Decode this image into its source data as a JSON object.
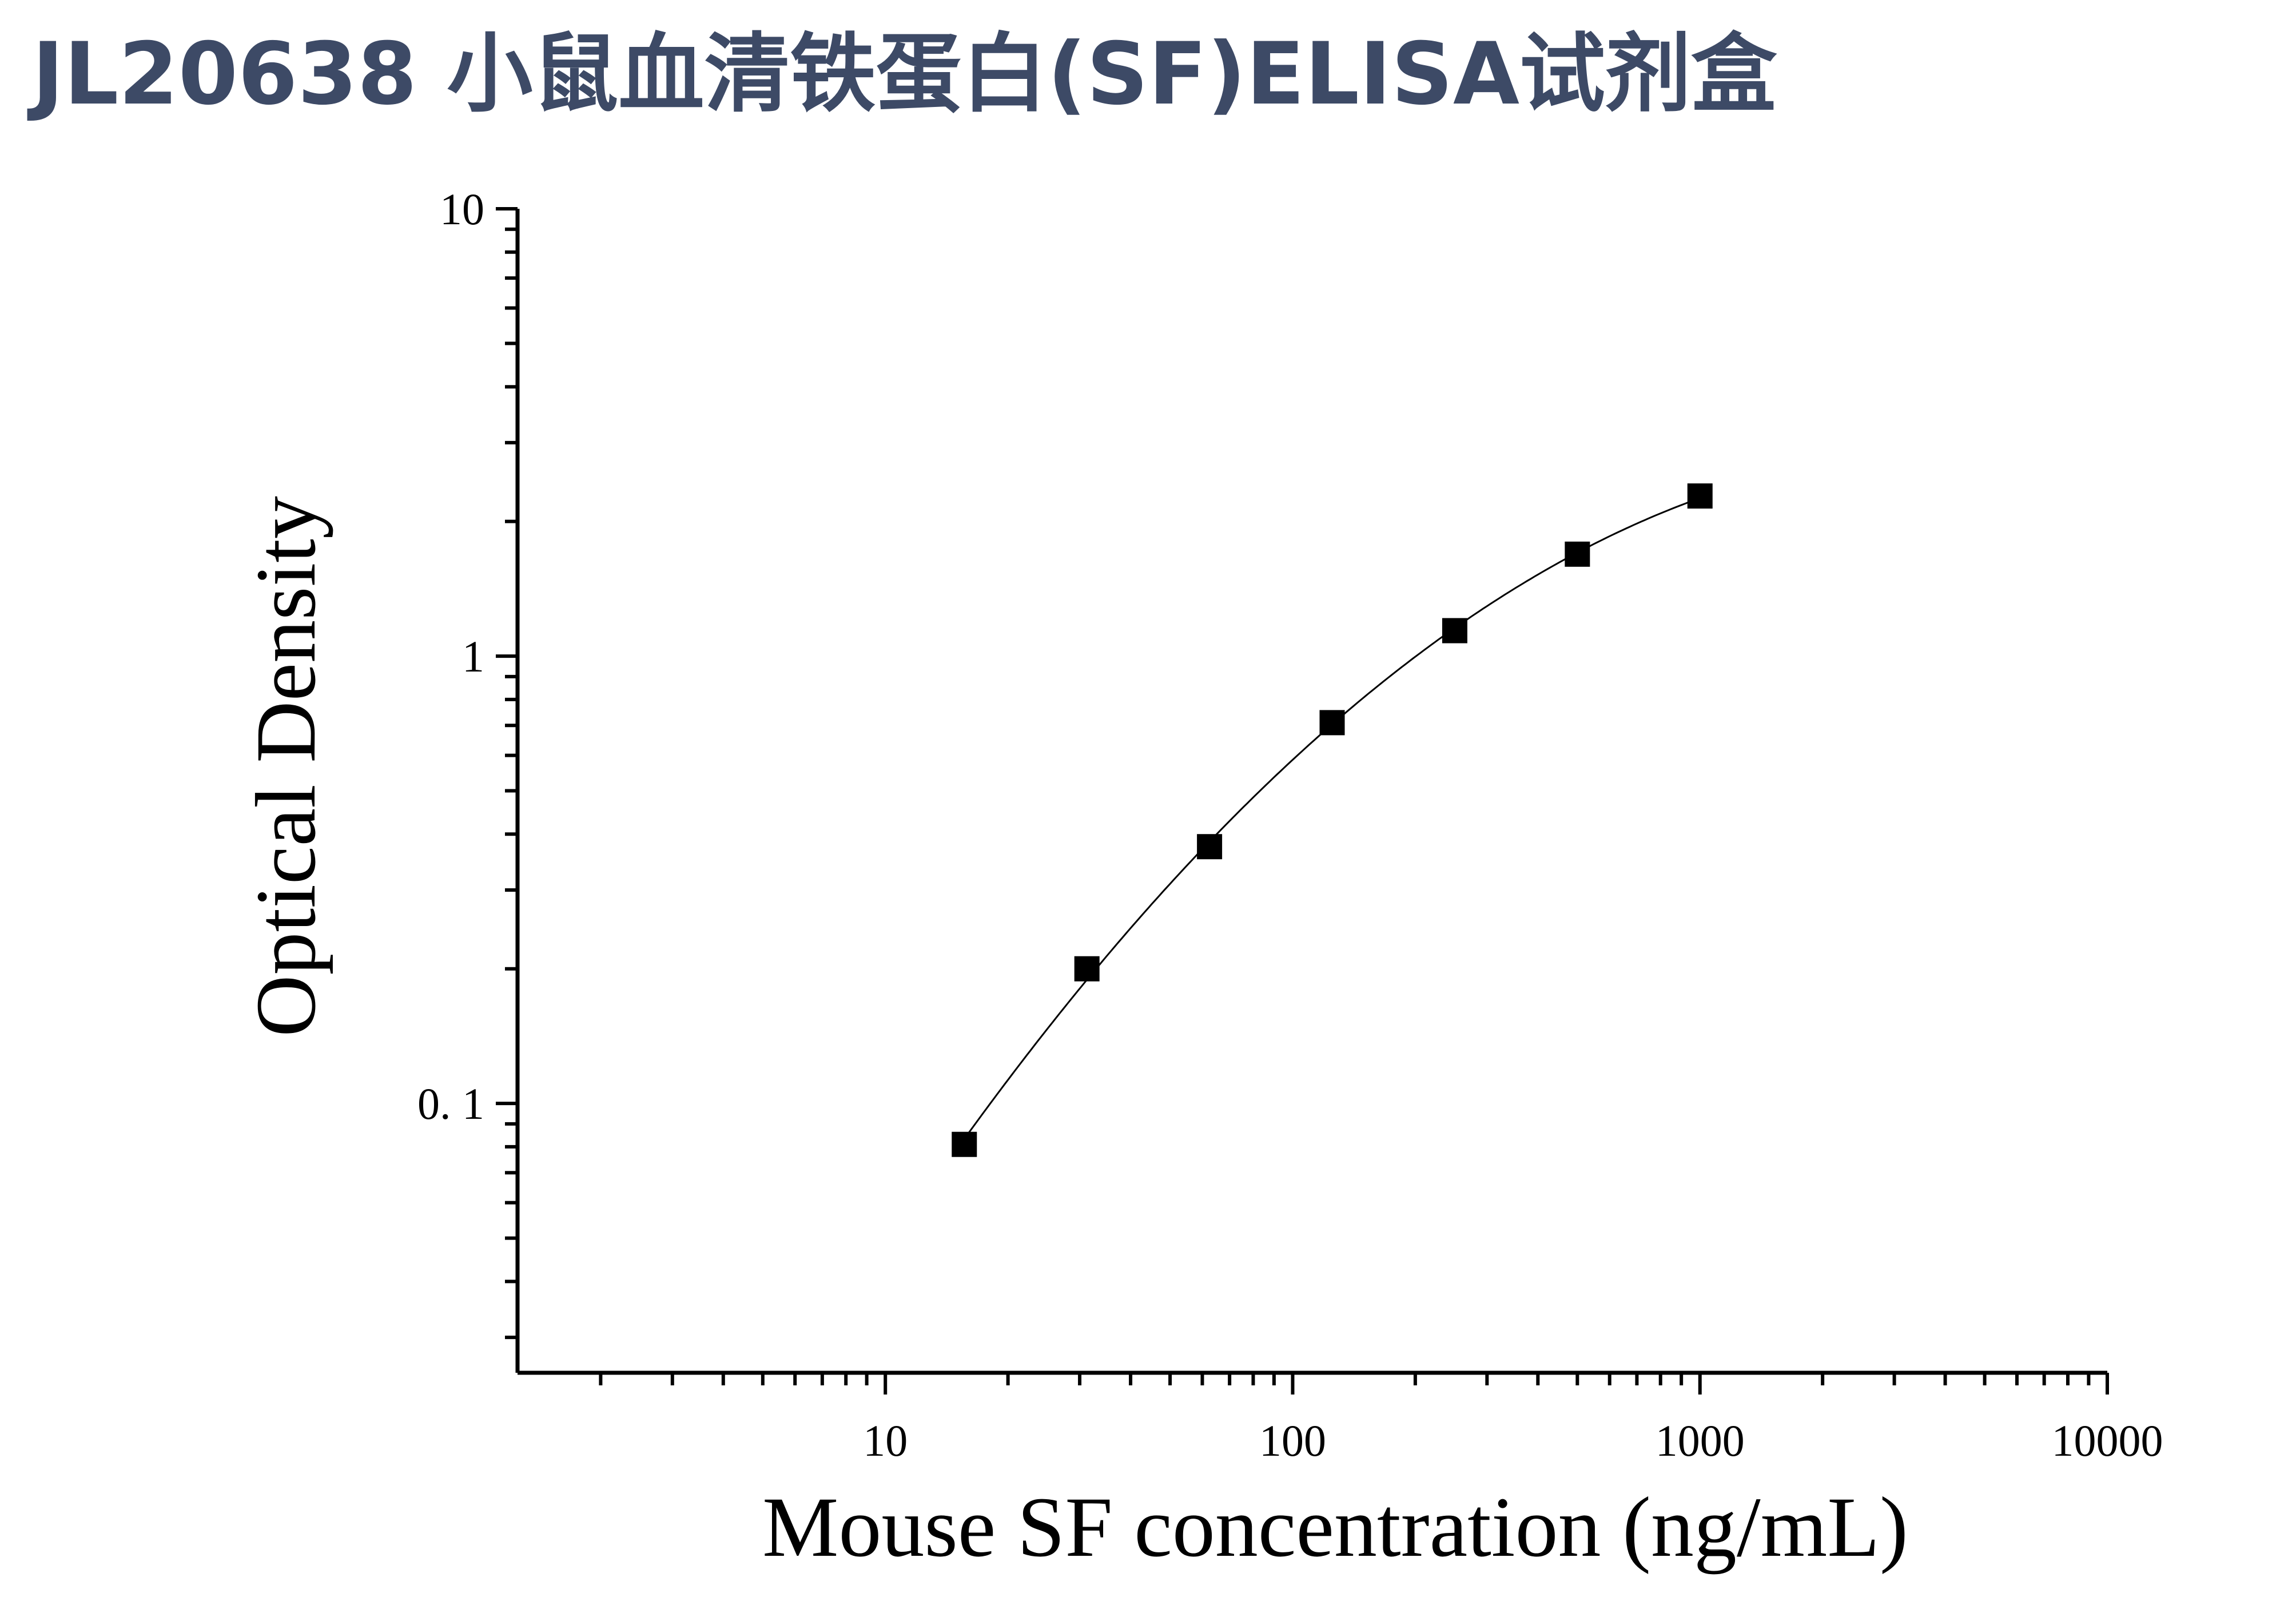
{
  "page": {
    "title": "JL20638 小鼠血清铁蛋白(SF)ELISA试剂盒"
  },
  "chart_data": {
    "type": "scatter",
    "title": "",
    "xlabel": "Mouse SF concentration (ng/mL)",
    "ylabel": "Optical Density",
    "x_scale": "log",
    "y_scale": "log",
    "xlim": [
      1.25,
      10000
    ],
    "ylim": [
      0.025,
      10
    ],
    "x_ticks": [
      {
        "value": 10,
        "label": "10"
      },
      {
        "value": 100,
        "label": "100"
      },
      {
        "value": 1000,
        "label": "1000"
      },
      {
        "value": 10000,
        "label": "10000"
      }
    ],
    "y_ticks": [
      {
        "value": 0.1,
        "label": "0. 1"
      },
      {
        "value": 1,
        "label": "1"
      },
      {
        "value": 10,
        "label": "10"
      }
    ],
    "grid": false,
    "legend": "none",
    "marker": "square",
    "fit_line": true,
    "color": "#000000",
    "series": [
      {
        "x": [
          15.625,
          31.25,
          62.5,
          125,
          250,
          500,
          1000
        ],
        "y": [
          0.081,
          0.2,
          0.375,
          0.71,
          1.14,
          1.69,
          2.28
        ]
      }
    ]
  }
}
